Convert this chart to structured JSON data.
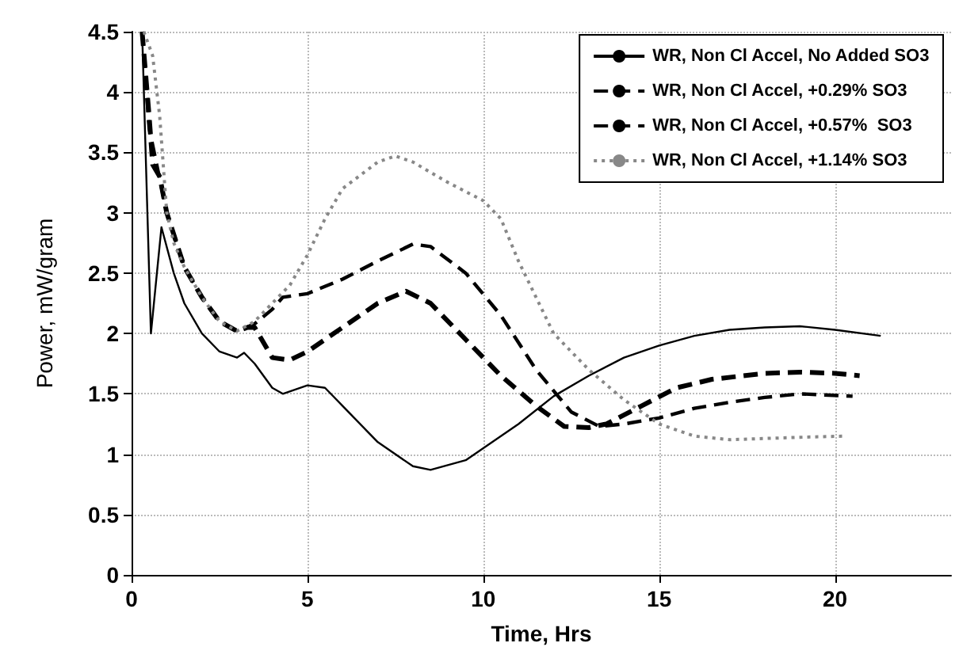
{
  "chart_data": {
    "type": "line",
    "xlabel": "Time, Hrs",
    "ylabel": "Power, mW/gram",
    "xlim": [
      0,
      23.3
    ],
    "xticks": [
      0,
      5,
      10,
      15,
      20
    ],
    "ylim": [
      0,
      4.5
    ],
    "yticks": [
      0,
      0.5,
      1,
      1.5,
      2,
      2.5,
      3,
      3.5,
      4,
      4.5
    ],
    "grid": true,
    "legend": "top right",
    "marker": "none",
    "series": [
      {
        "name": "WR, Non Cl Accel, No Added SO3",
        "color": "#000000",
        "line_style": "solid",
        "x": [
          0.3,
          0.55,
          0.85,
          1.2,
          1.5,
          2,
          2.5,
          3,
          3.2,
          3.5,
          4,
          4.3,
          5,
          5.5,
          6,
          7,
          8,
          8.5,
          9.5,
          10,
          11,
          12,
          13,
          14,
          15,
          16,
          17,
          18,
          19,
          20,
          21.3
        ],
        "values": [
          4.5,
          2.0,
          2.88,
          2.5,
          2.25,
          2.0,
          1.85,
          1.8,
          1.84,
          1.75,
          1.55,
          1.5,
          1.57,
          1.55,
          1.4,
          1.1,
          0.9,
          0.87,
          0.95,
          1.05,
          1.25,
          1.48,
          1.65,
          1.8,
          1.9,
          1.98,
          2.03,
          2.05,
          2.06,
          2.03,
          1.98
        ]
      },
      {
        "name": "WR, Non Cl Accel, +0.29% SO3",
        "color": "#000000",
        "line_style": "dashed",
        "x": [
          0.3,
          0.5,
          0.6,
          0.8,
          1,
          1.5,
          2,
          2.5,
          3,
          3.3,
          3.5,
          4,
          4.5,
          5,
          6,
          7,
          7.8,
          8.5,
          9.5,
          10.5,
          11.5,
          12.3,
          13,
          13.5,
          14.5,
          15.5,
          16.5,
          18,
          19,
          20,
          20.7
        ],
        "values": [
          4.5,
          3.8,
          3.4,
          3.3,
          3.0,
          2.55,
          2.3,
          2.1,
          2.02,
          2.05,
          2.05,
          1.8,
          1.78,
          1.85,
          2.05,
          2.25,
          2.35,
          2.25,
          1.95,
          1.65,
          1.4,
          1.23,
          1.22,
          1.25,
          1.4,
          1.55,
          1.62,
          1.67,
          1.68,
          1.67,
          1.65
        ]
      },
      {
        "name": "WR, Non Cl Accel, +0.57%  SO3",
        "color": "#000000",
        "line_style": "dashed",
        "x": [
          0.3,
          0.5,
          1,
          1.5,
          2,
          2.5,
          3,
          3.5,
          4,
          4.3,
          5,
          6,
          7,
          8,
          8.5,
          9.5,
          10.5,
          11.5,
          12.5,
          13.3,
          14,
          15,
          16,
          17,
          18,
          19,
          20.5
        ],
        "values": [
          4.5,
          3.7,
          3.0,
          2.55,
          2.3,
          2.1,
          2.02,
          2.08,
          2.2,
          2.3,
          2.33,
          2.45,
          2.6,
          2.74,
          2.72,
          2.5,
          2.15,
          1.7,
          1.35,
          1.23,
          1.25,
          1.3,
          1.38,
          1.43,
          1.47,
          1.5,
          1.48
        ]
      },
      {
        "name": "WR, Non Cl Accel, +1.14% SO3",
        "color": "#888888",
        "line_style": "dotted",
        "x": [
          0.35,
          0.6,
          0.8,
          1,
          1.2,
          1.5,
          2,
          2.5,
          3,
          3.5,
          4,
          4.5,
          5,
          5.5,
          6,
          7,
          7.5,
          8,
          9,
          10,
          10.5,
          11,
          11.5,
          12,
          13,
          14,
          15,
          16,
          17,
          18,
          19,
          20.3
        ],
        "values": [
          4.5,
          4.3,
          3.8,
          3.0,
          2.75,
          2.55,
          2.3,
          2.1,
          2.02,
          2.1,
          2.25,
          2.4,
          2.65,
          2.95,
          3.2,
          3.42,
          3.47,
          3.42,
          3.25,
          3.1,
          2.95,
          2.6,
          2.3,
          2.0,
          1.7,
          1.45,
          1.25,
          1.15,
          1.12,
          1.13,
          1.14,
          1.15
        ]
      }
    ]
  }
}
